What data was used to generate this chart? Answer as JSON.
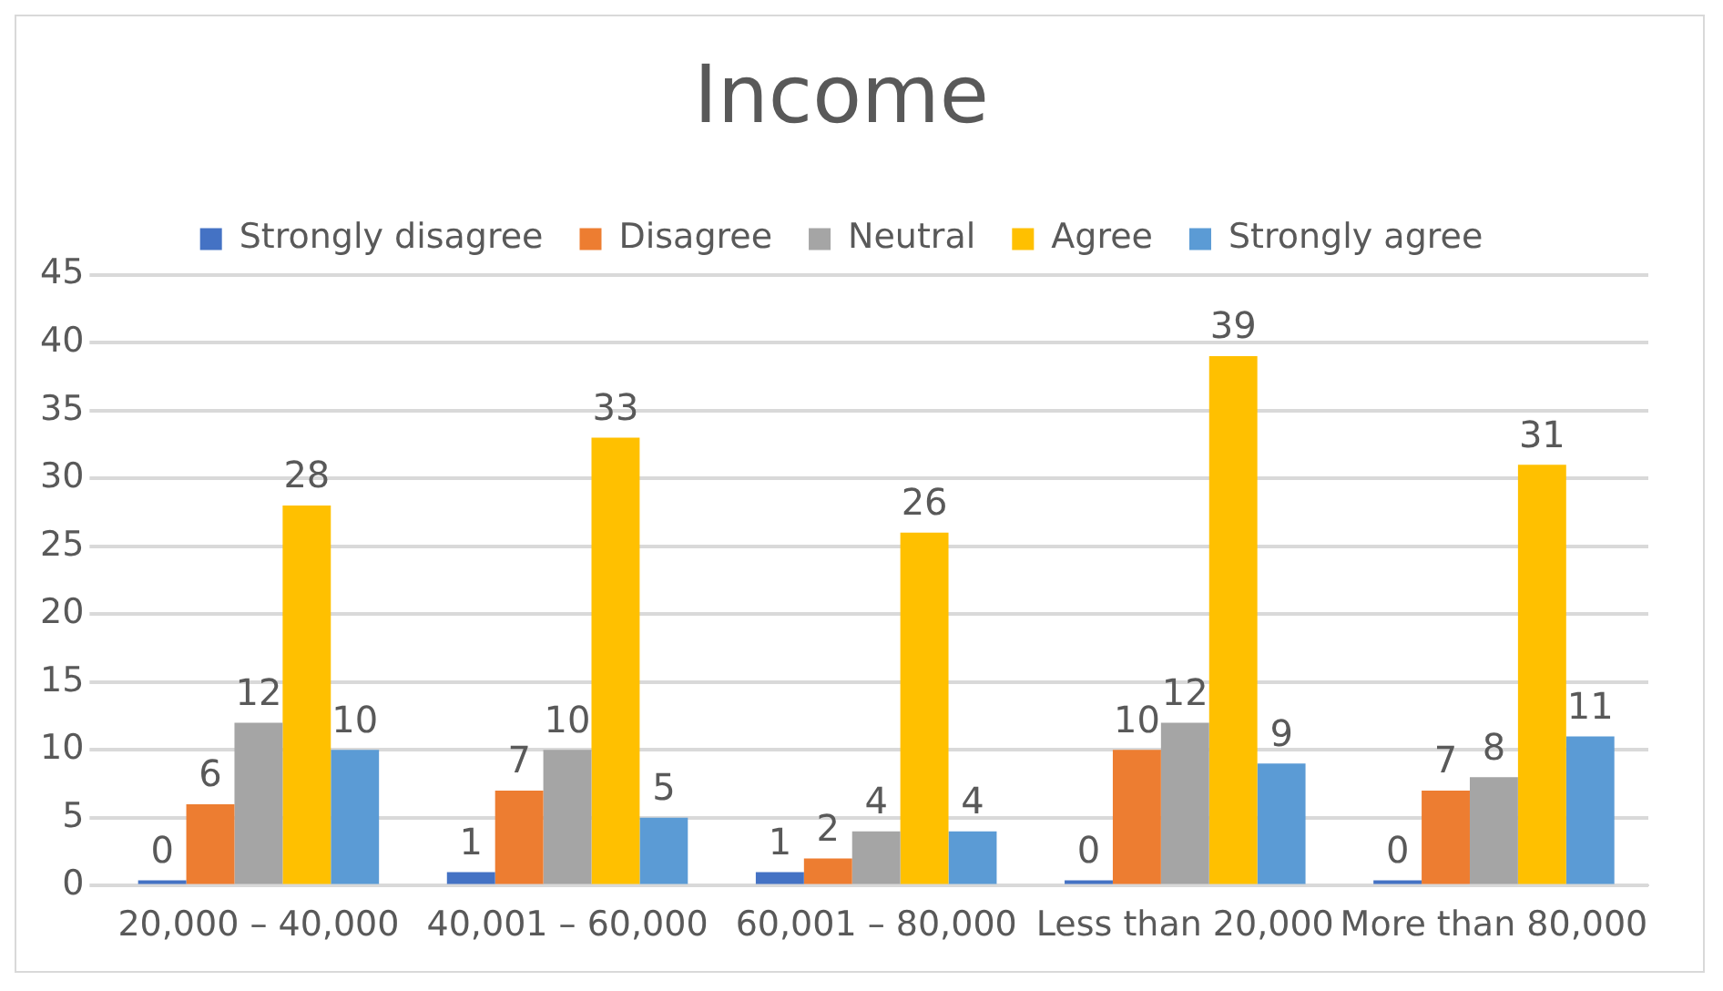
{
  "chart_data": {
    "type": "bar",
    "title": "Income",
    "categories": [
      "20,000 – 40,000",
      "40,001 – 60,000",
      "60,001 – 80,000",
      "Less than 20,000",
      "More than 80,000"
    ],
    "series": [
      {
        "name": "Strongly disagree",
        "color": "#4472c4",
        "values": [
          0,
          1,
          1,
          0,
          0
        ]
      },
      {
        "name": "Disagree",
        "color": "#ed7d31",
        "values": [
          6,
          7,
          2,
          10,
          7
        ]
      },
      {
        "name": "Neutral",
        "color": "#a5a5a5",
        "values": [
          12,
          10,
          4,
          12,
          8
        ]
      },
      {
        "name": "Agree",
        "color": "#ffc000",
        "values": [
          28,
          33,
          26,
          39,
          31
        ]
      },
      {
        "name": "Strongly agree",
        "color": "#5b9bd5",
        "values": [
          10,
          5,
          4,
          9,
          11
        ]
      }
    ],
    "ylim": [
      0,
      45
    ],
    "yticks": [
      0,
      5,
      10,
      15,
      20,
      25,
      30,
      35,
      40,
      45
    ],
    "grid": "y",
    "legend": "top",
    "data_labels": true
  }
}
